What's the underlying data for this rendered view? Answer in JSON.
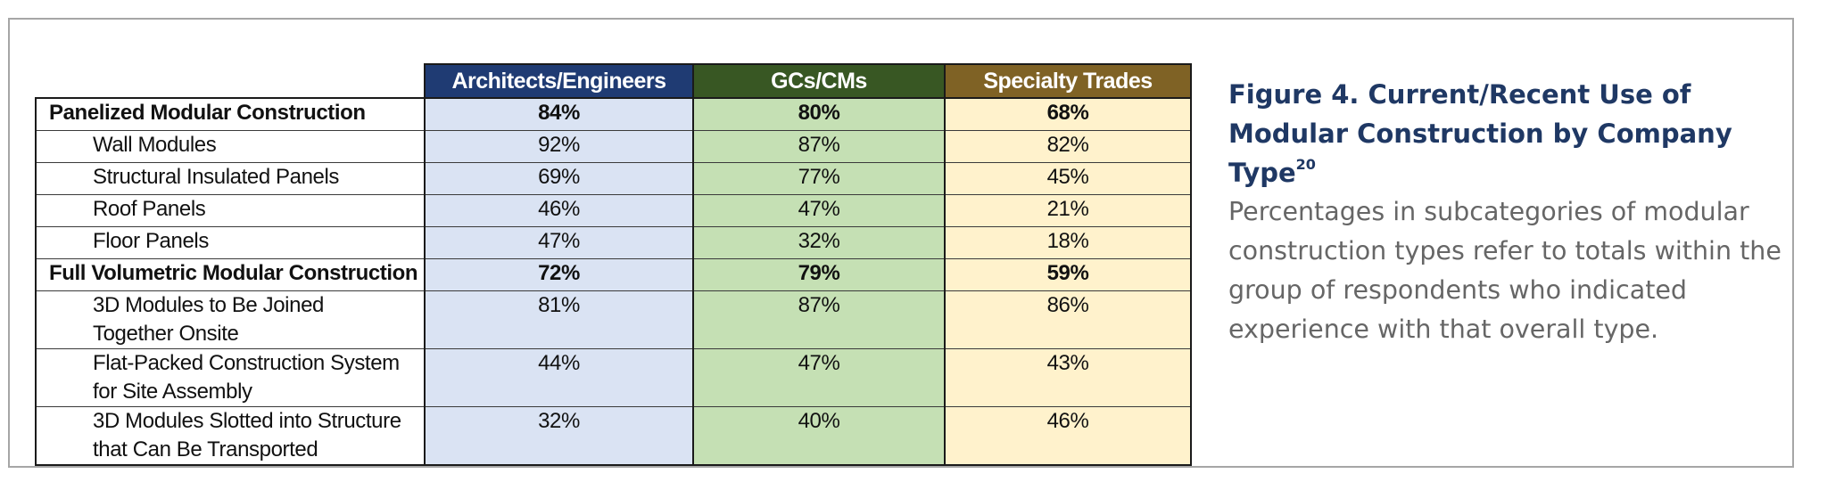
{
  "chart_data": {
    "type": "table",
    "columns": [
      "",
      "Architects/Engineers",
      "GCs/CMs",
      "Specialty Trades"
    ],
    "column_colors": {
      "Architects/Engineers": "#1f3b73",
      "GCs/CMs": "#385723",
      "Specialty Trades": "#7f6225"
    },
    "column_fill_colors": {
      "Architects/Engineers": "#dae3f3",
      "GCs/CMs": "#c5e0b4",
      "Specialty Trades": "#fff2cc"
    },
    "rows": [
      {
        "kind": "main",
        "label_lines": [
          "Panelized Modular Construction"
        ],
        "values": [
          "84%",
          "80%",
          "68%"
        ]
      },
      {
        "kind": "sub",
        "label_lines": [
          "Wall Modules"
        ],
        "values": [
          "92%",
          "87%",
          "82%"
        ]
      },
      {
        "kind": "sub",
        "label_lines": [
          "Structural Insulated Panels"
        ],
        "values": [
          "69%",
          "77%",
          "45%"
        ]
      },
      {
        "kind": "sub",
        "label_lines": [
          "Roof Panels"
        ],
        "values": [
          "46%",
          "47%",
          "21%"
        ]
      },
      {
        "kind": "sub",
        "label_lines": [
          "Floor Panels"
        ],
        "values": [
          "47%",
          "32%",
          "18%"
        ]
      },
      {
        "kind": "main",
        "label_lines": [
          "Full Volumetric Modular Construction"
        ],
        "values": [
          "72%",
          "79%",
          "59%"
        ]
      },
      {
        "kind": "sub",
        "label_lines": [
          "3D Modules to Be Joined",
          "Together Onsite"
        ],
        "values": [
          "81%",
          "87%",
          "86%"
        ]
      },
      {
        "kind": "sub",
        "label_lines": [
          "Flat-Packed Construction System",
          "for Site Assembly"
        ],
        "values": [
          "44%",
          "47%",
          "43%"
        ]
      },
      {
        "kind": "sub",
        "label_lines": [
          "3D Modules Slotted into Structure",
          "that Can Be Transported"
        ],
        "values": [
          "32%",
          "40%",
          "46%"
        ]
      }
    ]
  },
  "caption": {
    "title": "Figure 4. Current/Recent Use of Modular Construction by Company Type",
    "title_superscript": "20",
    "body": "Percentages in subcategories of modular construction types refer to totals within the group of respondents who indicated experience with that overall type."
  }
}
